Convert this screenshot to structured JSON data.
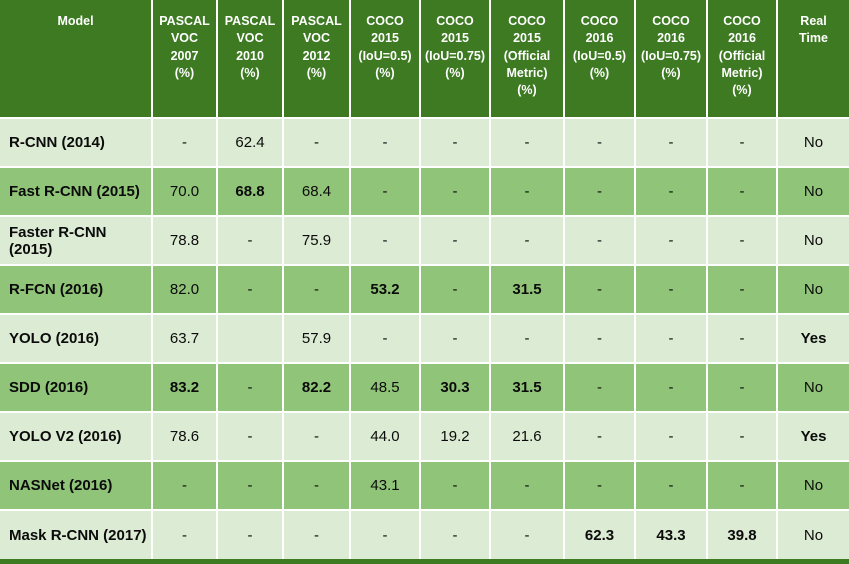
{
  "colors": {
    "header_bg": "#3d7a22",
    "row_light": "#dcebd3",
    "row_medium": "#90c478",
    "grid": "#ffffff",
    "header_text": "#ffffff",
    "body_text": "#0b0b0b"
  },
  "chart_data": {
    "type": "table",
    "title": "",
    "columns": [
      "Model",
      "PASCAL VOC 2007 (%)",
      "PASCAL VOC 2010 (%)",
      "PASCAL VOC 2012 (%)",
      "COCO 2015 (IoU=0.5) (%)",
      "COCO 2015 (IoU=0.75) (%)",
      "COCO 2015 (Official Metric) (%)",
      "COCO 2016 (IoU=0.5) (%)",
      "COCO 2016 (IoU=0.75) (%)",
      "COCO 2016 (Official Metric) (%)",
      "Real Time"
    ],
    "rows": [
      [
        "R-CNN (2014)",
        "-",
        "62.4",
        "-",
        "-",
        "-",
        "-",
        "-",
        "-",
        "-",
        "No"
      ],
      [
        "Fast R-CNN (2015)",
        "70.0",
        "68.8",
        "68.4",
        "-",
        "-",
        "-",
        "-",
        "-",
        "-",
        "No"
      ],
      [
        "Faster R-CNN (2015)",
        "78.8",
        "-",
        "75.9",
        "-",
        "-",
        "-",
        "-",
        "-",
        "-",
        "No"
      ],
      [
        "R-FCN (2016)",
        "82.0",
        "-",
        "-",
        "53.2",
        "-",
        "31.5",
        "-",
        "-",
        "-",
        "No"
      ],
      [
        "YOLO (2016)",
        "63.7",
        "",
        "57.9",
        "-",
        "-",
        "-",
        "-",
        "-",
        "-",
        "Yes"
      ],
      [
        "SDD (2016)",
        "83.2",
        "-",
        "82.2",
        "48.5",
        "30.3",
        "31.5",
        "-",
        "-",
        "-",
        "No"
      ],
      [
        "YOLO V2 (2016)",
        "78.6",
        "-",
        "-",
        "44.0",
        "19.2",
        "21.6",
        "-",
        "-",
        "-",
        "Yes"
      ],
      [
        "NASNet (2016)",
        "-",
        "-",
        "-",
        "43.1",
        "-",
        "-",
        "-",
        "-",
        "-",
        "No"
      ],
      [
        "Mask R-CNN (2017)",
        "-",
        "-",
        "-",
        "-",
        "-",
        "-",
        "62.3",
        "43.3",
        "39.8",
        "No"
      ]
    ],
    "bold_cells": [
      [
        1,
        2
      ],
      [
        3,
        4
      ],
      [
        3,
        6
      ],
      [
        4,
        10
      ],
      [
        5,
        1
      ],
      [
        5,
        3
      ],
      [
        5,
        5
      ],
      [
        5,
        6
      ],
      [
        6,
        10
      ],
      [
        8,
        7
      ],
      [
        8,
        8
      ],
      [
        8,
        9
      ]
    ],
    "row_shading": [
      "light",
      "medium",
      "light",
      "medium",
      "light",
      "medium",
      "light",
      "medium",
      "light"
    ],
    "legend_position": "none",
    "grid": "white 2px gridlines, dark green header band, dark green bottom strip"
  }
}
